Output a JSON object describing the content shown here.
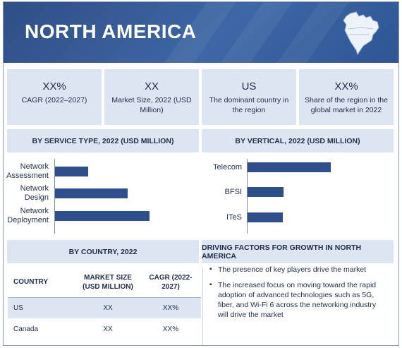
{
  "banner": {
    "title": "NORTH AMERICA",
    "map_icon": "north-america-map-icon"
  },
  "stats": [
    {
      "value": "XX%",
      "label": "CAGR (2022–2027)"
    },
    {
      "value": "XX",
      "label": "Market Size, 2022 (USD Million)"
    },
    {
      "value": "US",
      "label": "The dominant country in the region"
    },
    {
      "value": "XX%",
      "label": "Share of the region in the global market in 2022"
    }
  ],
  "chart_data": [
    {
      "type": "bar",
      "orientation": "horizontal",
      "title": "BY SERVICE TYPE, 2022 (USD MILLION)",
      "categories": [
        "Network Assessment",
        "Network Design",
        "Network Deployment"
      ],
      "values": [
        35,
        77,
        100
      ],
      "xlim": [
        0,
        100
      ]
    },
    {
      "type": "bar",
      "orientation": "horizontal",
      "title": "BY  VERTICAL, 2022 (USD MILLION)",
      "categories": [
        "Telecom",
        "BFSI",
        "ITeS"
      ],
      "values": [
        100,
        43,
        42
      ],
      "xlim": [
        0,
        100
      ]
    }
  ],
  "country_section": {
    "title": "BY COUNTRY, 2022",
    "columns": [
      "COUNTRY",
      "MARKET SIZE (USD MILLION)",
      "CAGR (2022-2027)"
    ],
    "rows": [
      [
        "US",
        "XX",
        "XX%"
      ],
      [
        "Canada",
        "XX",
        "XX%"
      ]
    ]
  },
  "factors": {
    "title": "DRIVING FACTORS FOR GROWTH IN NORTH AMERICA",
    "items": [
      "The presence of key players drive the market",
      "The increased focus on moving toward the rapid adoption of advanced technologies such as 5G, fiber, and Wi-Fi 6 across the networking industry will drive the market"
    ]
  },
  "colors": {
    "banner": "#3e67a6",
    "bar": "#2e4f8c",
    "panel": "#dce5f1",
    "text": "#1f2d4a"
  }
}
